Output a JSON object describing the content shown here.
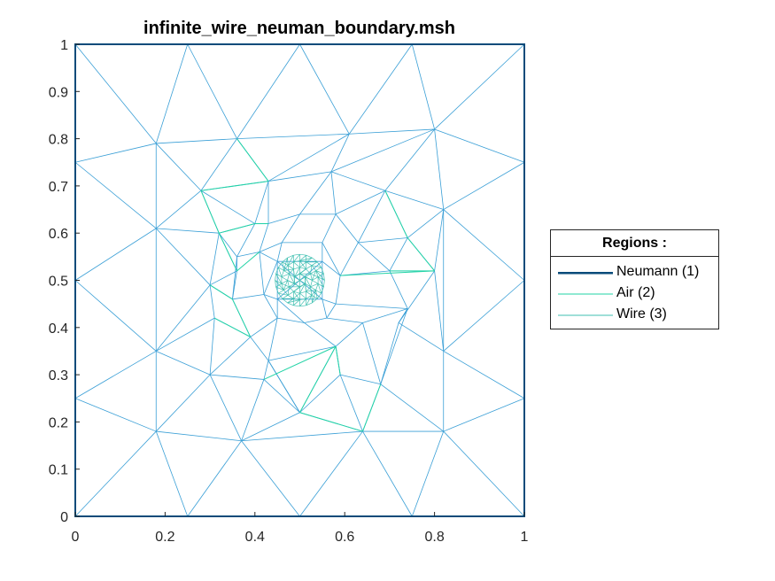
{
  "chart_data": {
    "type": "mesh",
    "title": "infinite_wire_neuman_boundary.msh",
    "xlabel": "",
    "ylabel": "",
    "xlim": [
      0,
      1
    ],
    "ylim": [
      0,
      1
    ],
    "x_ticks": [
      "0",
      "0.2",
      "0.4",
      "0.6",
      "0.8",
      "1"
    ],
    "y_ticks": [
      "0",
      "0.1",
      "0.2",
      "0.3",
      "0.4",
      "0.5",
      "0.6",
      "0.7",
      "0.8",
      "0.9",
      "1"
    ],
    "grid": false,
    "legend": {
      "title": "Regions :",
      "placement": "right",
      "entries": [
        {
          "label": "Neumann (1)",
          "color": "#0a4b7a"
        },
        {
          "label": "Air (2)",
          "color": "#22d3a6"
        },
        {
          "label": "Wire (3)",
          "color": "#3fbfb0"
        }
      ]
    },
    "colors": {
      "boundary": "#0a4b7a",
      "air_edges": "#3a9fd6",
      "air_inner": "#22d3a6",
      "wire": "#3fbfb0"
    },
    "nodes": [
      [
        0,
        0
      ],
      [
        0.25,
        0
      ],
      [
        0.5,
        0
      ],
      [
        0.75,
        0
      ],
      [
        1,
        0
      ],
      [
        0,
        0.25
      ],
      [
        0,
        0.5
      ],
      [
        0,
        0.75
      ],
      [
        0,
        1
      ],
      [
        1,
        0.25
      ],
      [
        1,
        0.5
      ],
      [
        1,
        0.75
      ],
      [
        1,
        1
      ],
      [
        0.25,
        1
      ],
      [
        0.5,
        1
      ],
      [
        0.75,
        1
      ],
      [
        0.18,
        0.79
      ],
      [
        0.36,
        0.8
      ],
      [
        0.61,
        0.81
      ],
      [
        0.8,
        0.82
      ],
      [
        0.18,
        0.61
      ],
      [
        0.82,
        0.65
      ],
      [
        0.18,
        0.35
      ],
      [
        0.82,
        0.35
      ],
      [
        0.18,
        0.18
      ],
      [
        0.37,
        0.16
      ],
      [
        0.64,
        0.18
      ],
      [
        0.82,
        0.18
      ],
      [
        0.28,
        0.69
      ],
      [
        0.43,
        0.71
      ],
      [
        0.57,
        0.73
      ],
      [
        0.69,
        0.69
      ],
      [
        0.32,
        0.6
      ],
      [
        0.36,
        0.52
      ],
      [
        0.3,
        0.49
      ],
      [
        0.31,
        0.42
      ],
      [
        0.39,
        0.38
      ],
      [
        0.3,
        0.3
      ],
      [
        0.42,
        0.29
      ],
      [
        0.59,
        0.3
      ],
      [
        0.68,
        0.28
      ],
      [
        0.43,
        0.33
      ],
      [
        0.58,
        0.36
      ],
      [
        0.64,
        0.41
      ],
      [
        0.72,
        0.41
      ],
      [
        0.63,
        0.58
      ],
      [
        0.7,
        0.52
      ],
      [
        0.74,
        0.59
      ],
      [
        0.74,
        0.44
      ],
      [
        0.43,
        0.62
      ],
      [
        0.5,
        0.64
      ],
      [
        0.58,
        0.64
      ],
      [
        0.42,
        0.47
      ],
      [
        0.41,
        0.56
      ],
      [
        0.58,
        0.45
      ],
      [
        0.59,
        0.51
      ],
      [
        0.45,
        0.42
      ],
      [
        0.51,
        0.41
      ],
      [
        0.5,
        0.22
      ],
      [
        0.4,
        0.62
      ],
      [
        0.56,
        0.42
      ],
      [
        0.46,
        0.58
      ],
      [
        0.55,
        0.58
      ],
      [
        0.8,
        0.52
      ],
      [
        0.35,
        0.46
      ],
      [
        0.36,
        0.55
      ],
      [
        0.45,
        0.54
      ],
      [
        0.55,
        0.54
      ],
      [
        0.55,
        0.46
      ],
      [
        0.45,
        0.46
      ]
    ],
    "edges": [
      [
        0,
        1
      ],
      [
        1,
        2
      ],
      [
        2,
        3
      ],
      [
        3,
        4
      ],
      [
        0,
        5
      ],
      [
        5,
        6
      ],
      [
        6,
        7
      ],
      [
        7,
        8
      ],
      [
        4,
        9
      ],
      [
        9,
        10
      ],
      [
        10,
        11
      ],
      [
        11,
        12
      ],
      [
        8,
        13
      ],
      [
        13,
        14
      ],
      [
        14,
        15
      ],
      [
        15,
        12
      ],
      [
        8,
        16
      ],
      [
        13,
        16
      ],
      [
        13,
        17
      ],
      [
        14,
        17
      ],
      [
        14,
        18
      ],
      [
        15,
        18
      ],
      [
        15,
        19
      ],
      [
        12,
        19
      ],
      [
        11,
        19
      ],
      [
        11,
        21
      ],
      [
        10,
        21
      ],
      [
        10,
        23
      ],
      [
        9,
        23
      ],
      [
        9,
        27
      ],
      [
        4,
        27
      ],
      [
        3,
        27
      ],
      [
        3,
        26
      ],
      [
        2,
        26
      ],
      [
        2,
        25
      ],
      [
        1,
        25
      ],
      [
        1,
        24
      ],
      [
        0,
        24
      ],
      [
        5,
        24
      ],
      [
        5,
        22
      ],
      [
        6,
        22
      ],
      [
        6,
        20
      ],
      [
        7,
        20
      ],
      [
        7,
        16
      ],
      [
        16,
        17
      ],
      [
        17,
        18
      ],
      [
        18,
        19
      ],
      [
        19,
        21
      ],
      [
        21,
        23
      ],
      [
        23,
        27
      ],
      [
        27,
        26
      ],
      [
        26,
        25
      ],
      [
        25,
        24
      ],
      [
        24,
        22
      ],
      [
        22,
        20
      ],
      [
        20,
        16
      ],
      [
        16,
        28
      ],
      [
        20,
        28
      ],
      [
        17,
        28
      ],
      [
        17,
        29
      ],
      [
        18,
        29
      ],
      [
        18,
        30
      ],
      [
        19,
        30
      ],
      [
        19,
        31
      ],
      [
        21,
        31
      ],
      [
        21,
        47
      ],
      [
        21,
        63
      ],
      [
        23,
        63
      ],
      [
        23,
        44
      ],
      [
        27,
        40
      ],
      [
        26,
        40
      ],
      [
        26,
        39
      ],
      [
        25,
        38
      ],
      [
        25,
        37
      ],
      [
        24,
        37
      ],
      [
        22,
        37
      ],
      [
        22,
        35
      ],
      [
        20,
        34
      ],
      [
        20,
        32
      ],
      [
        22,
        34
      ],
      [
        28,
        32
      ],
      [
        28,
        29
      ],
      [
        29,
        30
      ],
      [
        30,
        31
      ],
      [
        31,
        47
      ],
      [
        47,
        63
      ],
      [
        63,
        44
      ],
      [
        44,
        40
      ],
      [
        40,
        39
      ],
      [
        39,
        58
      ],
      [
        58,
        38
      ],
      [
        38,
        37
      ],
      [
        37,
        35
      ],
      [
        35,
        34
      ],
      [
        34,
        32
      ],
      [
        32,
        59
      ],
      [
        29,
        59
      ],
      [
        29,
        49
      ],
      [
        30,
        50
      ],
      [
        30,
        51
      ],
      [
        31,
        51
      ],
      [
        31,
        45
      ],
      [
        47,
        46
      ],
      [
        63,
        46
      ],
      [
        44,
        48
      ],
      [
        40,
        43
      ],
      [
        39,
        42
      ],
      [
        38,
        41
      ],
      [
        37,
        36
      ],
      [
        35,
        36
      ],
      [
        34,
        64
      ],
      [
        32,
        65
      ],
      [
        59,
        49
      ],
      [
        49,
        50
      ],
      [
        50,
        51
      ],
      [
        51,
        45
      ],
      [
        45,
        46
      ],
      [
        46,
        48
      ],
      [
        48,
        43
      ],
      [
        43,
        42
      ],
      [
        42,
        41
      ],
      [
        41,
        36
      ],
      [
        36,
        64
      ],
      [
        64,
        65
      ],
      [
        65,
        59
      ],
      [
        32,
        33
      ],
      [
        33,
        34
      ],
      [
        33,
        65
      ],
      [
        33,
        64
      ],
      [
        49,
        53
      ],
      [
        50,
        61
      ],
      [
        51,
        62
      ],
      [
        45,
        55
      ],
      [
        46,
        55
      ],
      [
        48,
        54
      ],
      [
        43,
        60
      ],
      [
        42,
        57
      ],
      [
        41,
        56
      ],
      [
        36,
        56
      ],
      [
        64,
        52
      ],
      [
        65,
        53
      ],
      [
        53,
        61
      ],
      [
        61,
        62
      ],
      [
        62,
        55
      ],
      [
        55,
        54
      ],
      [
        54,
        60
      ],
      [
        60,
        57
      ],
      [
        57,
        56
      ],
      [
        56,
        52
      ],
      [
        52,
        53
      ],
      [
        53,
        66
      ],
      [
        61,
        66
      ],
      [
        62,
        67
      ],
      [
        55,
        67
      ],
      [
        54,
        68
      ],
      [
        60,
        68
      ],
      [
        57,
        69
      ],
      [
        56,
        69
      ],
      [
        52,
        69
      ],
      [
        52,
        66
      ],
      [
        66,
        67
      ],
      [
        67,
        68
      ],
      [
        68,
        69
      ],
      [
        69,
        66
      ],
      [
        66,
        68
      ],
      [
        67,
        69
      ],
      [
        58,
        42
      ],
      [
        58,
        41
      ],
      [
        58,
        25
      ],
      [
        58,
        26
      ],
      [
        39,
        42
      ],
      [
        41,
        58
      ],
      [
        40,
        48
      ],
      [
        44,
        48
      ],
      [
        45,
        47
      ],
      [
        59,
        28
      ]
    ],
    "inner_edges": [
      [
        17,
        29
      ],
      [
        29,
        28
      ],
      [
        28,
        32
      ],
      [
        32,
        33
      ],
      [
        33,
        53
      ],
      [
        49,
        59
      ],
      [
        59,
        32
      ],
      [
        31,
        47
      ],
      [
        47,
        63
      ],
      [
        63,
        55
      ],
      [
        46,
        63
      ],
      [
        38,
        42
      ],
      [
        42,
        58
      ],
      [
        58,
        26
      ],
      [
        26,
        40
      ],
      [
        39,
        42
      ],
      [
        34,
        64
      ],
      [
        64,
        36
      ],
      [
        36,
        35
      ]
    ],
    "wire_center": [
      0.5,
      0.5
    ],
    "wire_radius": 0.055,
    "wire_rings": 4
  }
}
